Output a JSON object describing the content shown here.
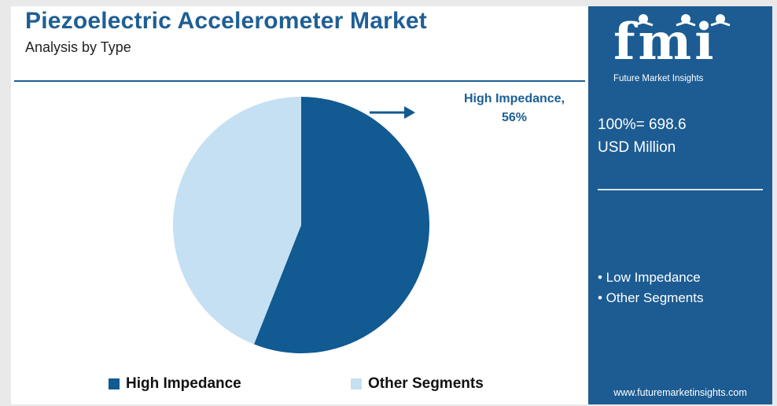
{
  "title": "Piezoelectric Accelerometer Market",
  "subtitle": "Analysis by Type",
  "callout": {
    "label": "High Impedance,",
    "value": "56%"
  },
  "colors": {
    "high_impedance": "#115a92",
    "other_segments": "#c5e0f2",
    "brand": "#1c5c93"
  },
  "chart_data": {
    "type": "pie",
    "title": "Piezoelectric Accelerometer Market",
    "subtitle": "Analysis by Type",
    "categories": [
      "High Impedance",
      "Other Segments"
    ],
    "values": [
      56,
      44
    ],
    "unit": "%",
    "legend_position": "bottom"
  },
  "legend": [
    {
      "label": "High Impedance"
    },
    {
      "label": "Other Segments"
    }
  ],
  "panel": {
    "logo_letters": "fmi",
    "logo_tagline": "Future Market Insights",
    "total_line1": "100%= 698.6",
    "total_line2": "USD Million",
    "segments": [
      "• Low Impedance",
      "• Other Segments"
    ],
    "website": "www.futuremarketinsights.com"
  }
}
